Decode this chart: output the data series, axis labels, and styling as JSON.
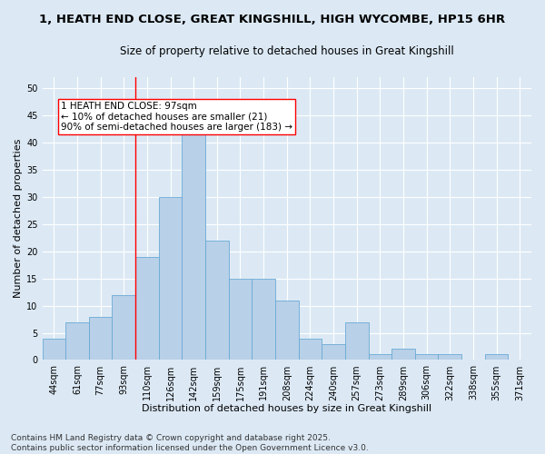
{
  "title_line1": "1, HEATH END CLOSE, GREAT KINGSHILL, HIGH WYCOMBE, HP15 6HR",
  "title_line2": "Size of property relative to detached houses in Great Kingshill",
  "xlabel": "Distribution of detached houses by size in Great Kingshill",
  "ylabel": "Number of detached properties",
  "categories": [
    "44sqm",
    "61sqm",
    "77sqm",
    "93sqm",
    "110sqm",
    "126sqm",
    "142sqm",
    "159sqm",
    "175sqm",
    "191sqm",
    "208sqm",
    "224sqm",
    "240sqm",
    "257sqm",
    "273sqm",
    "289sqm",
    "306sqm",
    "322sqm",
    "338sqm",
    "355sqm",
    "371sqm"
  ],
  "values": [
    4,
    7,
    8,
    12,
    19,
    30,
    42,
    22,
    15,
    15,
    11,
    4,
    3,
    7,
    1,
    2,
    1,
    1,
    0,
    1,
    0
  ],
  "bar_color": "#b8d0e8",
  "bar_edge_color": "#6aaad4",
  "background_color": "#dce9f5",
  "grid_color": "#ffffff",
  "vline_color": "red",
  "vline_x_index": 3.5,
  "annotation_text_line1": "1 HEATH END CLOSE: 97sqm",
  "annotation_text_line2": "← 10% of detached houses are smaller (21)",
  "annotation_text_line3": "90% of semi-detached houses are larger (183) →",
  "ylim": [
    0,
    52
  ],
  "yticks": [
    0,
    5,
    10,
    15,
    20,
    25,
    30,
    35,
    40,
    45,
    50
  ],
  "footer_text": "Contains HM Land Registry data © Crown copyright and database right 2025.\nContains public sector information licensed under the Open Government Licence v3.0.",
  "title_fontsize": 9.5,
  "subtitle_fontsize": 8.5,
  "axis_label_fontsize": 8,
  "tick_fontsize": 7,
  "annotation_fontsize": 7.5,
  "footer_fontsize": 6.5,
  "ylabel_fontsize": 8
}
